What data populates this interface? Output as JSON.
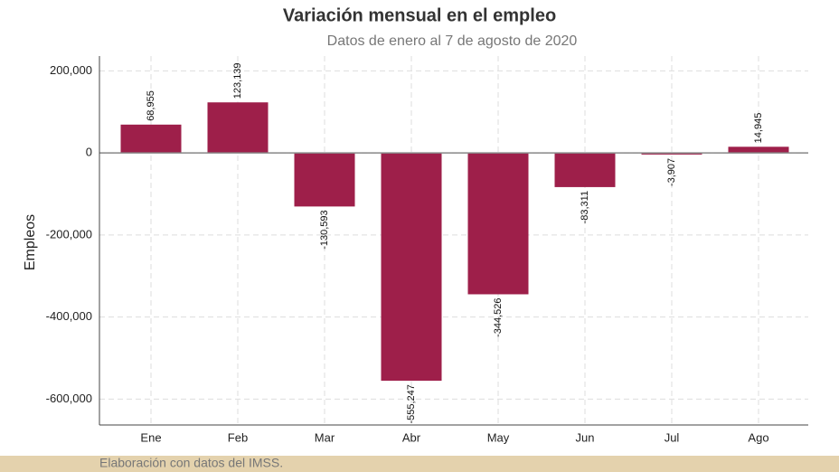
{
  "chart_data": {
    "type": "bar",
    "title": "Variación mensual en el empleo",
    "subtitle": "Datos de enero al 7 de agosto de 2020",
    "y_label": "Empleos",
    "source": "Elaboración con datos del IMSS.",
    "categories": [
      "Ene",
      "Feb",
      "Mar",
      "Abr",
      "May",
      "Jun",
      "Jul",
      "Ago"
    ],
    "values": [
      68955,
      123139,
      -130593,
      -555247,
      -344526,
      -83311,
      -3907,
      14945
    ],
    "value_labels": [
      "68,955",
      "123,139",
      "-130,593",
      "-555,247",
      "-344,526",
      "-83,311",
      "-3,907",
      "14,945"
    ],
    "color": "#9e1f4a",
    "ylim": [
      -663000,
      236000
    ],
    "yticks": [
      {
        "value": 200000,
        "label": "200,000"
      },
      0,
      {
        "value": -200000,
        "label": "-200,000"
      },
      {
        "value": -400000,
        "label": "-400,000"
      },
      {
        "value": -600000,
        "label": "-600,000"
      }
    ],
    "grid": true
  }
}
